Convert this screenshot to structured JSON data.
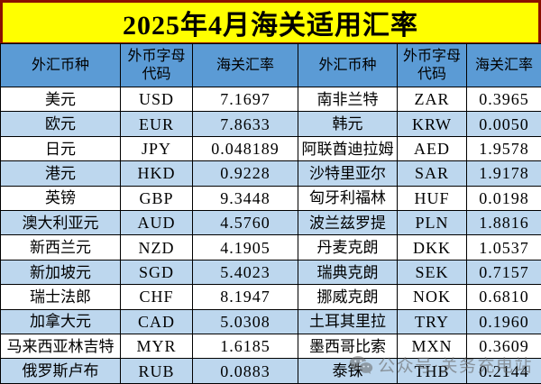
{
  "title": "2025年4月海关适用汇率",
  "colors": {
    "title_bg": "#FFFF00",
    "title_text": "#000000",
    "title_border": "#8A0F00",
    "header_bg": "#5B9BD5",
    "row_white": "#FFFFFF",
    "row_alt": "#BDD7EE",
    "grid_line": "#000000",
    "watermark_gray": "#696969"
  },
  "table": {
    "headers": [
      "外汇币种",
      "外币字母\n代码",
      "海关汇率",
      "外汇币种",
      "外币字母\n代码",
      "海关汇率"
    ],
    "rows": [
      [
        "美元",
        "USD",
        "7.1697",
        "南非兰特",
        "ZAR",
        "0.3965"
      ],
      [
        "欧元",
        "EUR",
        "7.8633",
        "韩元",
        "KRW",
        "0.0050"
      ],
      [
        "日元",
        "JPY",
        "0.048189",
        "阿联酋迪拉姆",
        "AED",
        "1.9578"
      ],
      [
        "港元",
        "HKD",
        "0.9228",
        "沙特里亚尔",
        "SAR",
        "1.9178"
      ],
      [
        "英镑",
        "GBP",
        "9.3448",
        "匈牙利福林",
        "HUF",
        "0.0198"
      ],
      [
        "澳大利亚元",
        "AUD",
        "4.5760",
        "波兰兹罗提",
        "PLN",
        "1.8816"
      ],
      [
        "新西兰元",
        "NZD",
        "4.1905",
        "丹麦克朗",
        "DKK",
        "1.0537"
      ],
      [
        "新加坡元",
        "SGD",
        "5.4023",
        "瑞典克朗",
        "SEK",
        "0.7157"
      ],
      [
        "瑞士法郎",
        "CHF",
        "8.1947",
        "挪威克朗",
        "NOK",
        "0.6810"
      ],
      [
        "加拿大元",
        "CAD",
        "5.0308",
        "土耳其里拉",
        "TRY",
        "0.1960"
      ],
      [
        "马来西亚林吉特",
        "MYR",
        "1.6185",
        "墨西哥比索",
        "MXN",
        "0.3609"
      ],
      [
        "俄罗斯卢布",
        "RUB",
        "0.0883",
        "泰铢",
        "THB",
        "0.2144"
      ]
    ]
  },
  "watermark": {
    "icon": "wechat-icon",
    "text": "公众号·关务充电站"
  }
}
